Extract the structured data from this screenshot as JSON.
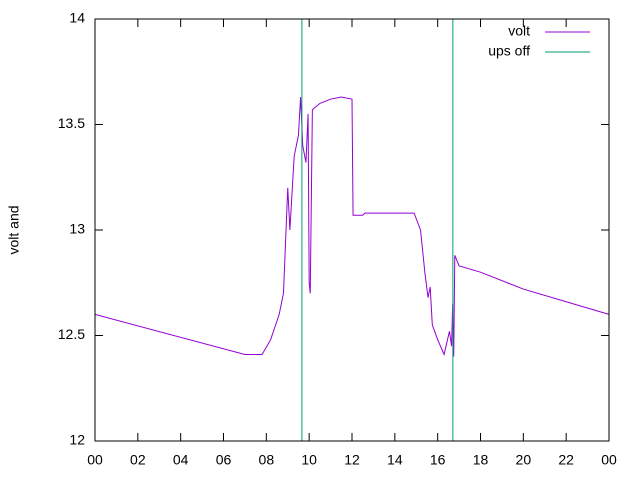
{
  "chart_data": {
    "type": "line",
    "ylabel": "volt and",
    "xlim": [
      0,
      24
    ],
    "xticks": [
      {
        "value": 0,
        "label": "00"
      },
      {
        "value": 2,
        "label": "02"
      },
      {
        "value": 4,
        "label": "04"
      },
      {
        "value": 6,
        "label": "06"
      },
      {
        "value": 8,
        "label": "08"
      },
      10,
      12,
      14,
      16,
      18,
      20,
      22,
      {
        "value": 24,
        "label": "00"
      }
    ],
    "ylim": [
      12,
      14
    ],
    "yticks": [
      12,
      12.5,
      13,
      13.5,
      14
    ],
    "legend": "top-right",
    "series": [
      {
        "name": "volt",
        "color": "#9400d3",
        "x": [
          0,
          7,
          7.8,
          8.2,
          8.6,
          8.8,
          9.0,
          9.1,
          9.3,
          9.5,
          9.6,
          9.7,
          9.85,
          9.95,
          10.0,
          10.05,
          10.15,
          10.5,
          11.0,
          11.5,
          12.0,
          12.05,
          12.5,
          12.6,
          14.9,
          15.2,
          15.4,
          15.55,
          15.65,
          15.75,
          16.0,
          16.3,
          16.55,
          16.65,
          16.7,
          16.75,
          16.8,
          17.0,
          18,
          20,
          22,
          24
        ],
        "values": [
          12.6,
          12.41,
          12.41,
          12.48,
          12.6,
          12.7,
          13.2,
          13.0,
          13.35,
          13.45,
          13.63,
          13.4,
          13.32,
          13.55,
          12.75,
          12.7,
          13.57,
          13.6,
          13.62,
          13.63,
          13.62,
          13.07,
          13.07,
          13.08,
          13.08,
          13.0,
          12.8,
          12.68,
          12.73,
          12.55,
          12.48,
          12.41,
          12.52,
          12.45,
          12.65,
          12.4,
          12.88,
          12.83,
          12.8,
          12.72,
          12.66,
          12.6
        ]
      },
      {
        "name": "ups off",
        "color": "#009e73",
        "x": [
          9.66,
          16.71
        ]
      }
    ]
  }
}
